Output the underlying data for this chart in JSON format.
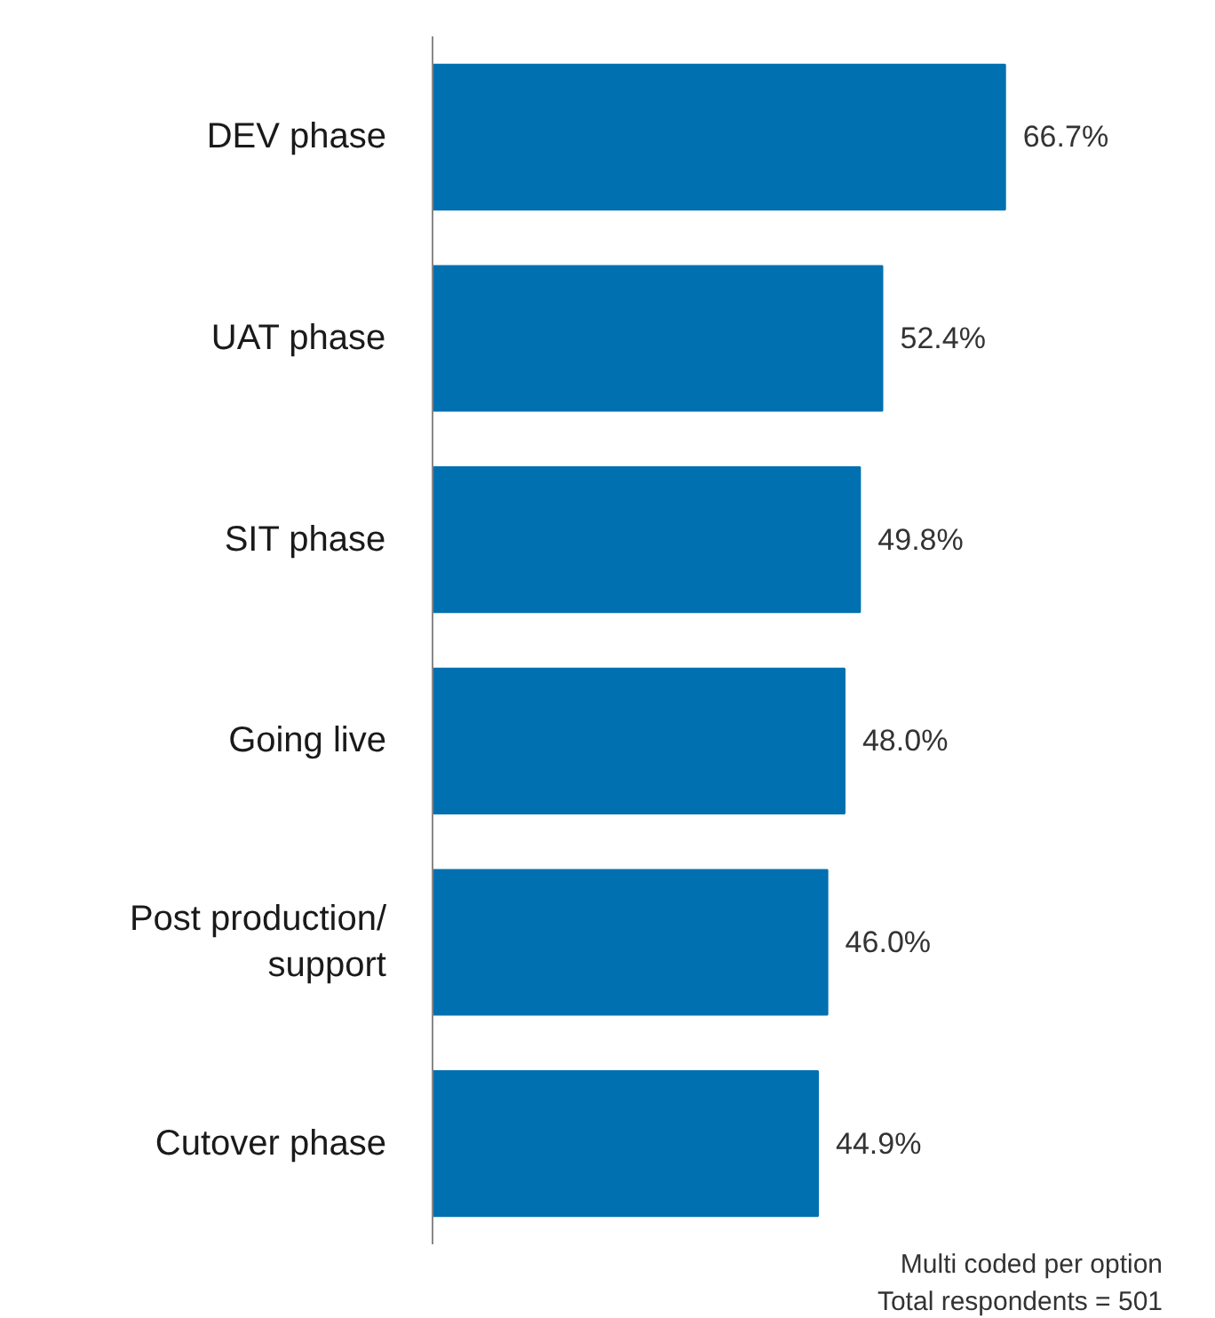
{
  "chart_data": {
    "type": "bar",
    "orientation": "horizontal",
    "categories": [
      "DEV phase",
      "UAT phase",
      "SIT phase",
      "Going live",
      "Post production/\nsupport",
      "Cutover phase"
    ],
    "values": [
      66.7,
      52.4,
      49.8,
      48.0,
      46.0,
      44.9
    ],
    "value_labels": [
      "66.7%",
      "52.4%",
      "49.8%",
      "48.0%",
      "46.0%",
      "44.9%"
    ],
    "color": "#0070b0",
    "tick_labels": "y",
    "grid": false,
    "annotations": [
      "Multi coded per option",
      "Total respondents = 501"
    ]
  }
}
